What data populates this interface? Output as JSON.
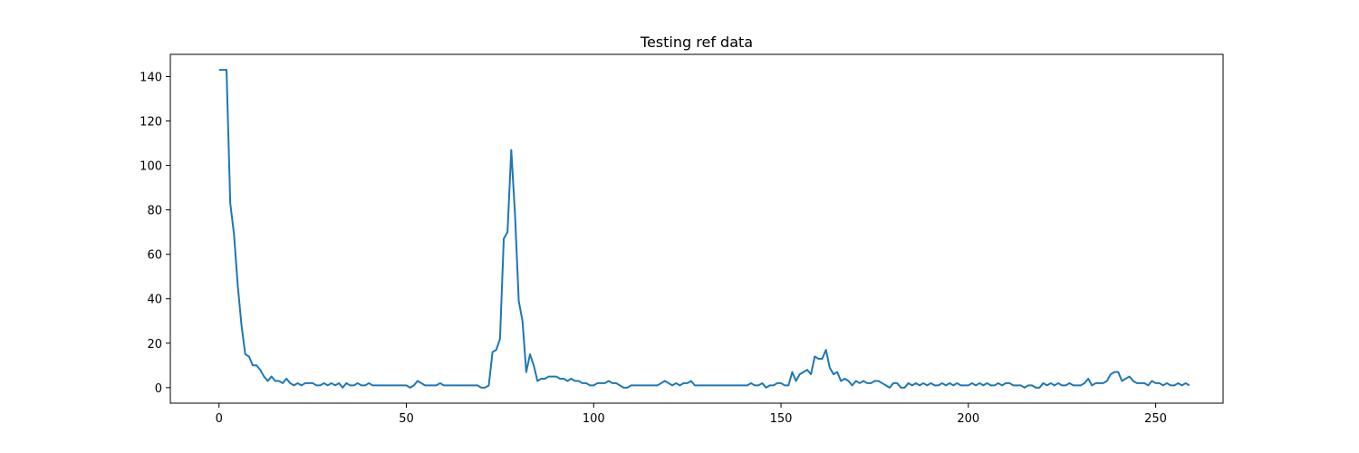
{
  "chart_data": {
    "type": "line",
    "title": "Testing ref data",
    "xlabel": "",
    "ylabel": "",
    "xlim": [
      -13,
      268
    ],
    "ylim": [
      -7,
      150
    ],
    "x_ticks": [
      0,
      50,
      100,
      150,
      200,
      250
    ],
    "y_ticks": [
      0,
      20,
      40,
      60,
      80,
      100,
      120,
      140
    ],
    "grid": false,
    "line_color": "#1f77b4",
    "series": [
      {
        "values": [
          143,
          143,
          143,
          83,
          69,
          46,
          28,
          15,
          14,
          10,
          10,
          8,
          5,
          3,
          5,
          3,
          3,
          2,
          4,
          2,
          1,
          2,
          1,
          2,
          2,
          2,
          1,
          1,
          2,
          1,
          2,
          1,
          2,
          0,
          2,
          1,
          1,
          2,
          1,
          1,
          2,
          1,
          1,
          1,
          1,
          1,
          1,
          1,
          1,
          1,
          1,
          0,
          1,
          3,
          2,
          1,
          1,
          1,
          1,
          2,
          1,
          1,
          1,
          1,
          1,
          1,
          1,
          1,
          1,
          1,
          0,
          0,
          1,
          16,
          17,
          22,
          67,
          70,
          107,
          78,
          39,
          30,
          7,
          15,
          10,
          3,
          4,
          4,
          5,
          5,
          5,
          4,
          4,
          3,
          4,
          3,
          3,
          2,
          2,
          1,
          1,
          2,
          2,
          2,
          3,
          2,
          2,
          1,
          0,
          0,
          1,
          1,
          1,
          1,
          1,
          1,
          1,
          1,
          2,
          3,
          2,
          1,
          2,
          1,
          2,
          2,
          3,
          1,
          1,
          1,
          1,
          1,
          1,
          1,
          1,
          1,
          1,
          1,
          1,
          1,
          1,
          1,
          2,
          1,
          1,
          2,
          0,
          1,
          1,
          2,
          2,
          1,
          1,
          7,
          3,
          6,
          7,
          8,
          6,
          14,
          13,
          13,
          17,
          9,
          6,
          7,
          3,
          4,
          3,
          1,
          3,
          2,
          3,
          2,
          2,
          3,
          3,
          2,
          1,
          0,
          2,
          2,
          0,
          0,
          2,
          1,
          2,
          1,
          2,
          1,
          2,
          1,
          1,
          2,
          1,
          2,
          1,
          2,
          1,
          1,
          1,
          2,
          1,
          2,
          1,
          2,
          1,
          1,
          2,
          1,
          2,
          2,
          1,
          1,
          1,
          0,
          1,
          1,
          0,
          0,
          2,
          1,
          2,
          1,
          2,
          1,
          1,
          2,
          1,
          1,
          1,
          2,
          4,
          1,
          2,
          2,
          2,
          3,
          6,
          7,
          7,
          3,
          4,
          5,
          3,
          2,
          2,
          2,
          1,
          3,
          2,
          2,
          1,
          2,
          1,
          1,
          2,
          1,
          2,
          1
        ]
      }
    ]
  }
}
